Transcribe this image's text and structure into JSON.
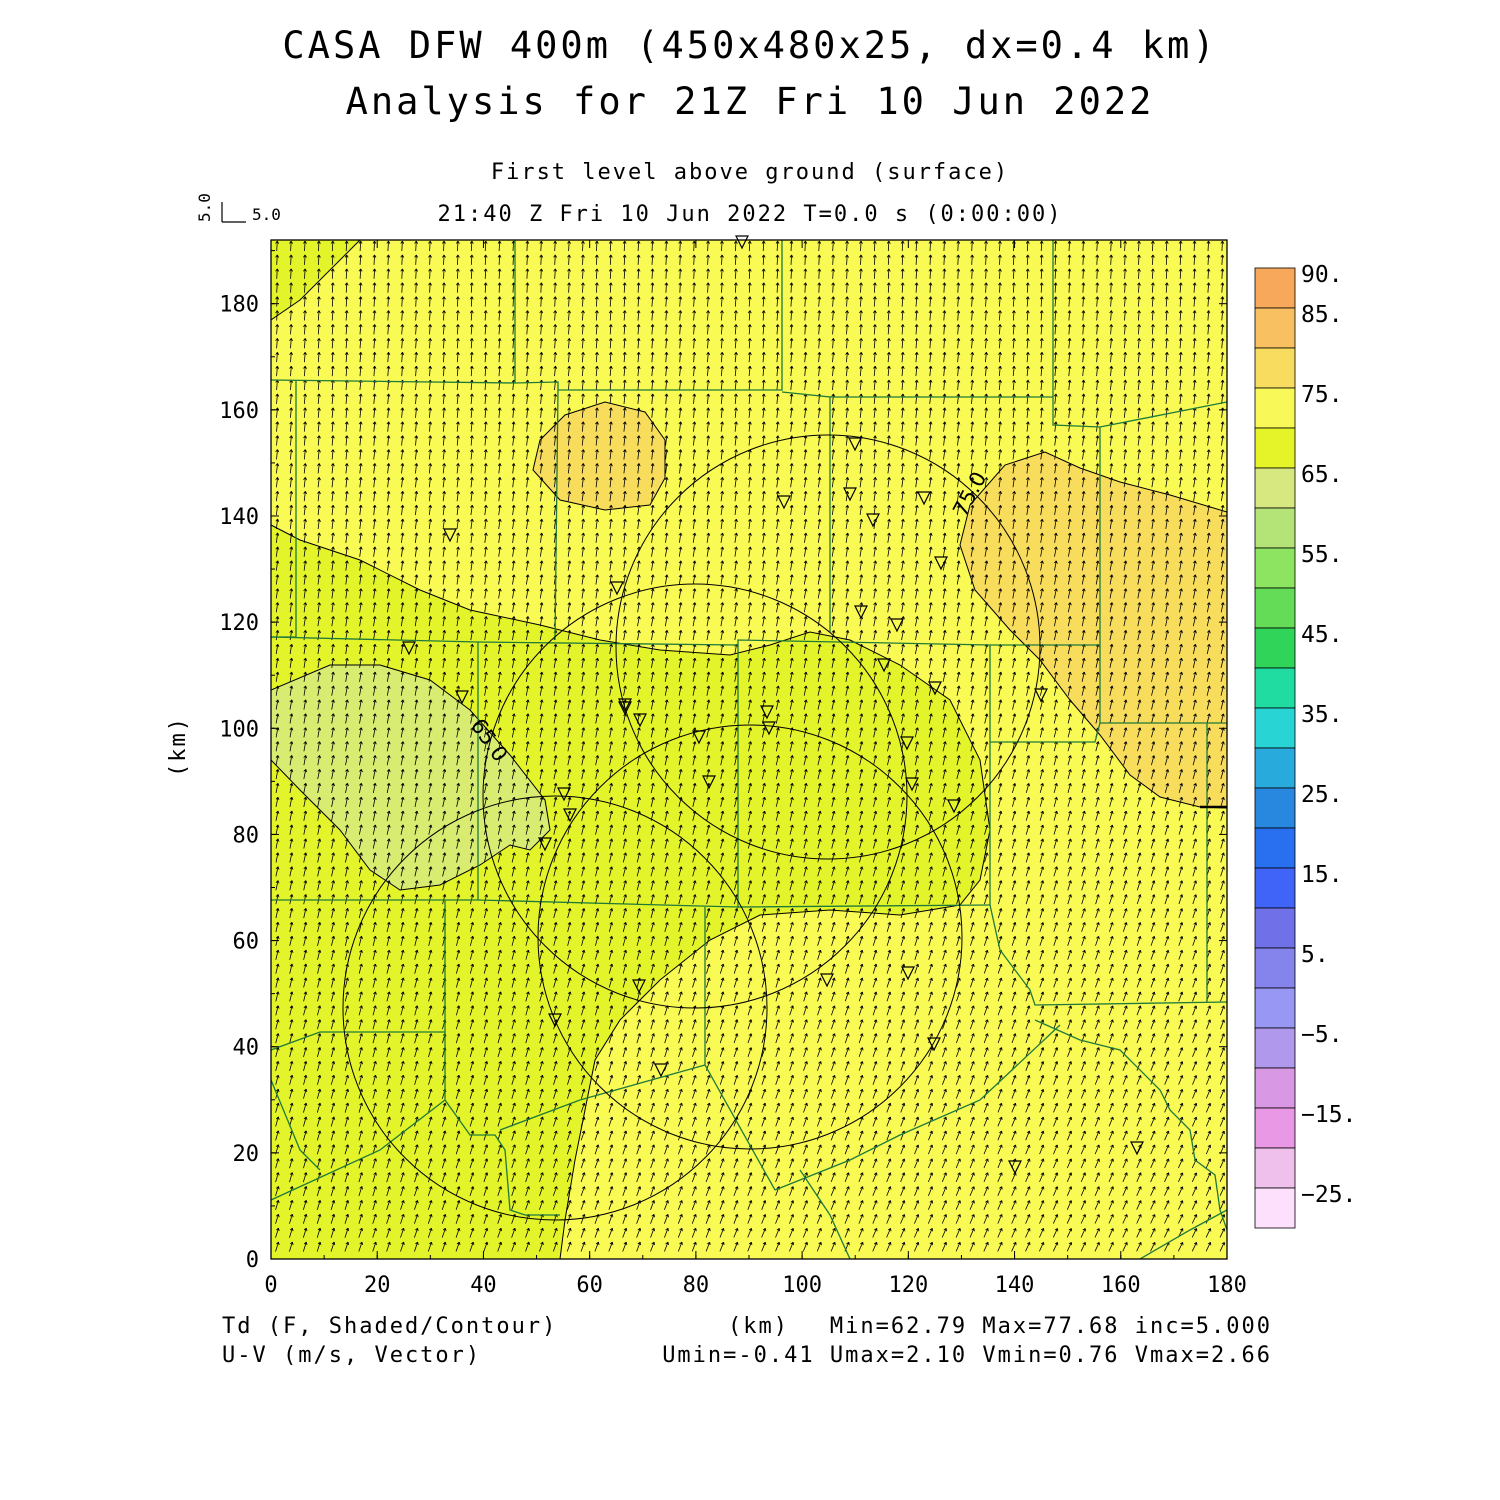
{
  "titles": {
    "line1": "CASA DFW 400m (450x480x25, dx=0.4 km)",
    "line2": "Analysis for 21Z Fri 10 Jun 2022",
    "level": "First level above ground (surface)",
    "time": "21:40 Z Fri 10 Jun 2022    T=0.0 s (0:00:00)"
  },
  "vector_ref": {
    "v_label": "5.0",
    "h_label": "5.0"
  },
  "axes": {
    "x_unit": "(km)",
    "y_unit": "(km)",
    "x_ticks": [
      "0",
      "20",
      "40",
      "60",
      "80",
      "100",
      "120",
      "140",
      "160",
      "180"
    ],
    "y_ticks": [
      "0",
      "20",
      "40",
      "60",
      "80",
      "100",
      "120",
      "140",
      "160",
      "180"
    ],
    "x_range": [
      0,
      180
    ],
    "y_range": [
      0,
      192
    ]
  },
  "colorbar": {
    "labels": [
      "90.",
      "85.",
      "75.",
      "65.",
      "55.",
      "45.",
      "35.",
      "25.",
      "15.",
      "5.",
      "−5.",
      "−15.",
      "−25."
    ],
    "colors": [
      "#f8a85a",
      "#f8c060",
      "#f8dc60",
      "#f8f858",
      "#e4f428",
      "#d8e880",
      "#b4e478",
      "#8ce460",
      "#64dc58",
      "#30d458",
      "#20dca0",
      "#28d4d4",
      "#28aadc",
      "#2888e0",
      "#2870f0",
      "#4064f8",
      "#7070e8",
      "#8484ec",
      "#9898f4",
      "#b098ec",
      "#d898e4",
      "#e898e4",
      "#f0c0ec",
      "#fce0fc"
    ]
  },
  "footer": {
    "field": "Td (F, Shaded/Contour)",
    "vector": "U-V (m/s, Vector)",
    "unit": "(km)",
    "stats1": "Min=62.79 Max=77.68 inc=5.000",
    "stats2": "Umin=-0.41 Umax=2.10 Vmin=0.76 Vmax=2.66"
  },
  "contour_labels": [
    "75.0",
    "65.0"
  ],
  "map_colors": {
    "yellow": "#fafa55",
    "green": "#e4f42a",
    "pale": "#d9ec72",
    "orange": "#f8dc5c",
    "county": "#1f7a3a"
  }
}
